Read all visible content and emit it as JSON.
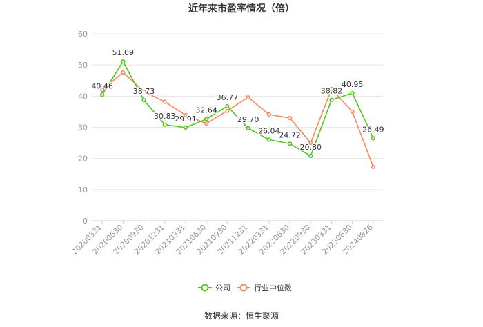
{
  "chart_data": {
    "type": "line",
    "title": "近年来市盈率情况（倍）",
    "categories": [
      "20200331",
      "20200630",
      "20200930",
      "20201231",
      "20210331",
      "20210630",
      "20210930",
      "20211231",
      "20220331",
      "20220630",
      "20220930",
      "20230331",
      "20230630",
      "20240826"
    ],
    "ylim": [
      0,
      60
    ],
    "yticks": [
      0,
      10,
      20,
      30,
      40,
      50,
      60
    ],
    "grid": true,
    "legend_position": "bottom",
    "series": [
      {
        "name": "公司",
        "color": "#52c41a",
        "values": [
          40.46,
          51.09,
          38.73,
          30.83,
          29.91,
          32.64,
          36.77,
          29.7,
          26.04,
          24.72,
          20.8,
          38.82,
          40.95,
          26.49
        ],
        "labels": [
          "40.46",
          "51.09",
          "38.73",
          "30.83",
          "29.91",
          "32.64",
          "36.77",
          "29.70",
          "26.04",
          "24.72",
          "20.80",
          "38.82",
          "40.95",
          "26.49"
        ]
      },
      {
        "name": "行业中位数",
        "color": "#f4895f",
        "values": [
          42.0,
          47.6,
          41.5,
          38.2,
          33.9,
          31.2,
          35.3,
          39.6,
          34.1,
          33.0,
          25.0,
          42.3,
          35.0,
          17.3
        ]
      }
    ]
  },
  "source": "数据来源：恒生聚源"
}
